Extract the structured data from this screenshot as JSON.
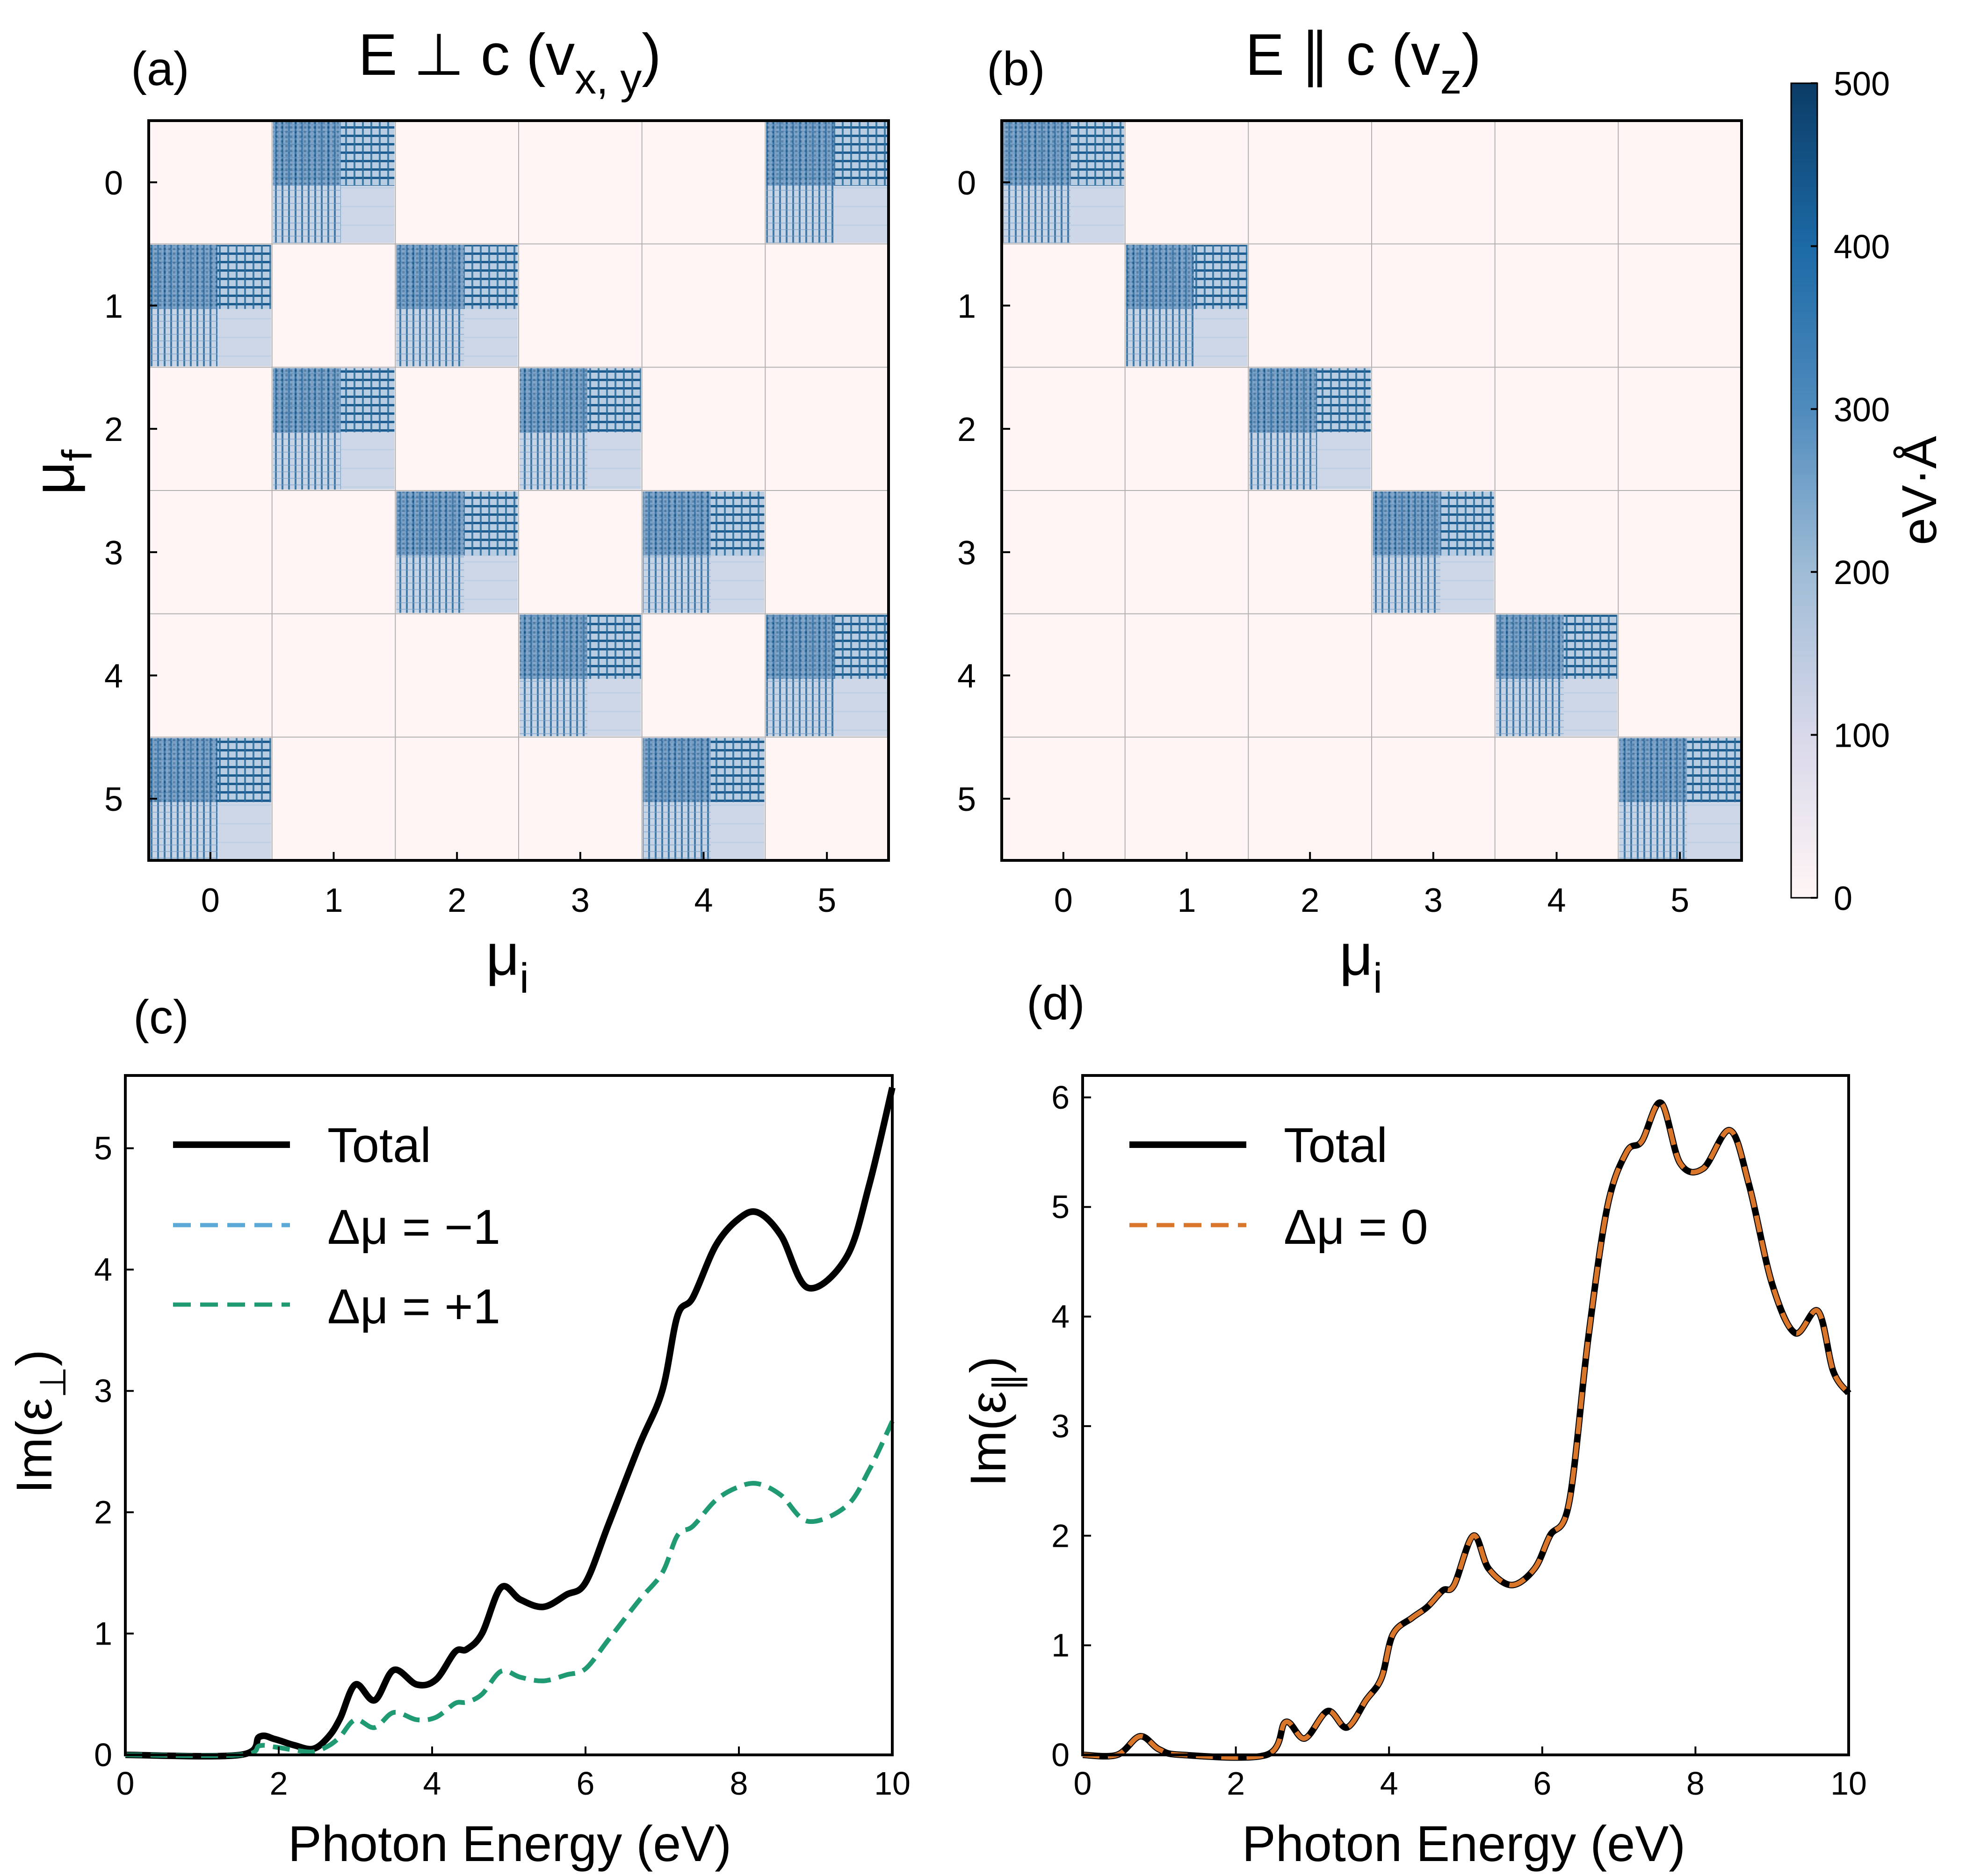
{
  "figure": {
    "panel_a_label": "(a)",
    "panel_b_label": "(b)",
    "panel_c_label": "(c)",
    "panel_d_label": "(d)"
  },
  "colorbar": {
    "label": "eV·Å",
    "ticks": [
      "0",
      "100",
      "200",
      "300",
      "400",
      "500"
    ],
    "range": [
      0,
      500
    ],
    "colors": [
      "#fff5f5",
      "#d8d8ea",
      "#9fbcd6",
      "#4f8bbd",
      "#1c6aa6",
      "#0b3c66"
    ]
  },
  "chart_data": [
    {
      "type": "heatmap",
      "panel": "a",
      "title_main": "E ⊥ c (v",
      "title_sub": "x, y",
      "title_end": ")",
      "xlabel": "μ",
      "xlabel_sub": "i",
      "ylabel": "μ",
      "ylabel_sub": "f",
      "x_ticks": [
        "0",
        "1",
        "2",
        "3",
        "4",
        "5"
      ],
      "y_ticks": [
        "0",
        "1",
        "2",
        "3",
        "4",
        "5"
      ],
      "active_blocks": [
        [
          0,
          1
        ],
        [
          0,
          5
        ],
        [
          1,
          0
        ],
        [
          1,
          2
        ],
        [
          2,
          1
        ],
        [
          2,
          3
        ],
        [
          3,
          2
        ],
        [
          3,
          4
        ],
        [
          4,
          3
        ],
        [
          4,
          5
        ],
        [
          5,
          0
        ],
        [
          5,
          4
        ]
      ],
      "block_value_range_eVA": [
        0,
        500
      ]
    },
    {
      "type": "heatmap",
      "panel": "b",
      "title_main": "E ∥ c (v",
      "title_sub": "z",
      "title_end": ")",
      "xlabel": "μ",
      "xlabel_sub": "i",
      "x_ticks": [
        "0",
        "1",
        "2",
        "3",
        "4",
        "5"
      ],
      "y_ticks": [
        "0",
        "1",
        "2",
        "3",
        "4",
        "5"
      ],
      "active_blocks": [
        [
          0,
          0
        ],
        [
          1,
          1
        ],
        [
          2,
          2
        ],
        [
          3,
          3
        ],
        [
          4,
          4
        ],
        [
          5,
          5
        ]
      ],
      "block_value_range_eVA": [
        0,
        500
      ]
    },
    {
      "type": "line",
      "panel": "c",
      "xlabel": "Photon Energy (eV)",
      "ylabel": "Im(ε",
      "ylabel_sub": "⊥",
      "ylabel_end": ")",
      "xlim": [
        0,
        10
      ],
      "ylim": [
        0,
        5.6
      ],
      "x_ticks": [
        "0",
        "2",
        "4",
        "6",
        "8",
        "10"
      ],
      "y_ticks": [
        "0",
        "1",
        "2",
        "3",
        "4",
        "5"
      ],
      "series": [
        {
          "name": "Total",
          "legend": "Total",
          "color": "#000000",
          "dash": false,
          "x": [
            0,
            1.5,
            1.75,
            1.95,
            2.2,
            2.45,
            2.65,
            2.8,
            3.0,
            3.25,
            3.5,
            3.8,
            4.05,
            4.3,
            4.45,
            4.65,
            4.9,
            5.15,
            5.45,
            5.75,
            6.0,
            6.3,
            6.7,
            7.0,
            7.2,
            7.4,
            7.7,
            8.0,
            8.25,
            8.55,
            8.9,
            9.4,
            9.7,
            10.0
          ],
          "y": [
            0,
            0,
            0.15,
            0.13,
            0.08,
            0.05,
            0.15,
            0.3,
            0.58,
            0.45,
            0.7,
            0.58,
            0.62,
            0.85,
            0.87,
            1.0,
            1.38,
            1.28,
            1.22,
            1.32,
            1.42,
            1.9,
            2.55,
            3.0,
            3.62,
            3.77,
            4.2,
            4.42,
            4.47,
            4.28,
            3.85,
            4.1,
            4.7,
            5.5
          ]
        },
        {
          "name": "Δμ = −1",
          "legend_main": "Δμ = −1",
          "color": "#5aa9d6",
          "dash": true,
          "x": [
            0,
            1.5,
            1.75,
            1.95,
            2.2,
            2.45,
            2.65,
            2.8,
            3.0,
            3.25,
            3.5,
            3.8,
            4.05,
            4.3,
            4.45,
            4.65,
            4.9,
            5.15,
            5.45,
            5.75,
            6.0,
            6.3,
            6.7,
            7.0,
            7.2,
            7.4,
            7.7,
            8.0,
            8.25,
            8.55,
            8.9,
            9.4,
            9.7,
            10.0
          ],
          "y": [
            0,
            0,
            0.075,
            0.065,
            0.04,
            0.025,
            0.075,
            0.15,
            0.29,
            0.225,
            0.35,
            0.29,
            0.31,
            0.425,
            0.435,
            0.5,
            0.69,
            0.64,
            0.61,
            0.66,
            0.71,
            0.95,
            1.275,
            1.5,
            1.81,
            1.885,
            2.1,
            2.21,
            2.235,
            2.14,
            1.925,
            2.05,
            2.35,
            2.75
          ]
        },
        {
          "name": "Δμ = +1",
          "legend_main": "Δμ = +1",
          "color": "#1f9a72",
          "dash": true,
          "x": [
            0,
            1.5,
            1.75,
            1.95,
            2.2,
            2.45,
            2.65,
            2.8,
            3.0,
            3.25,
            3.5,
            3.8,
            4.05,
            4.3,
            4.45,
            4.65,
            4.9,
            5.15,
            5.45,
            5.75,
            6.0,
            6.3,
            6.7,
            7.0,
            7.2,
            7.4,
            7.7,
            8.0,
            8.25,
            8.55,
            8.9,
            9.4,
            9.7,
            10.0
          ],
          "y": [
            0,
            0,
            0.075,
            0.065,
            0.04,
            0.025,
            0.075,
            0.15,
            0.29,
            0.225,
            0.35,
            0.29,
            0.31,
            0.425,
            0.435,
            0.5,
            0.69,
            0.64,
            0.61,
            0.66,
            0.71,
            0.95,
            1.275,
            1.5,
            1.81,
            1.885,
            2.1,
            2.21,
            2.235,
            2.14,
            1.925,
            2.05,
            2.35,
            2.75
          ]
        }
      ]
    },
    {
      "type": "line",
      "panel": "d",
      "xlabel": "Photon Energy (eV)",
      "ylabel": "Im(ε",
      "ylabel_sub": "∥",
      "ylabel_end": ")",
      "xlim": [
        0,
        10
      ],
      "ylim": [
        0,
        6.2
      ],
      "x_ticks": [
        "0",
        "2",
        "4",
        "6",
        "8",
        "10"
      ],
      "y_ticks": [
        "0",
        "1",
        "2",
        "3",
        "4",
        "5",
        "6"
      ],
      "series": [
        {
          "name": "Total",
          "legend": "Total",
          "color": "#000000",
          "dash": false,
          "x": [
            0,
            0.45,
            0.75,
            1.0,
            1.3,
            2.4,
            2.65,
            2.9,
            3.2,
            3.45,
            3.7,
            3.9,
            4.05,
            4.3,
            4.5,
            4.7,
            4.85,
            5.1,
            5.3,
            5.6,
            5.9,
            6.1,
            6.35,
            6.6,
            6.85,
            7.1,
            7.3,
            7.55,
            7.8,
            8.1,
            8.45,
            8.7,
            9.0,
            9.3,
            9.6,
            9.8,
            10.0
          ],
          "y": [
            0,
            0,
            0.17,
            0.05,
            0,
            0,
            0.3,
            0.15,
            0.4,
            0.25,
            0.5,
            0.7,
            1.1,
            1.25,
            1.35,
            1.5,
            1.55,
            2.0,
            1.7,
            1.55,
            1.7,
            2.0,
            2.3,
            3.8,
            5.0,
            5.5,
            5.6,
            5.95,
            5.4,
            5.35,
            5.7,
            5.2,
            4.3,
            3.85,
            4.05,
            3.5,
            3.3
          ]
        },
        {
          "name": "Δμ = 0",
          "legend_main": "Δμ = 0",
          "color": "#d9762a",
          "dash": true,
          "x": [
            0,
            0.45,
            0.75,
            1.0,
            1.3,
            2.4,
            2.65,
            2.9,
            3.2,
            3.45,
            3.7,
            3.9,
            4.05,
            4.3,
            4.5,
            4.7,
            4.85,
            5.1,
            5.3,
            5.6,
            5.9,
            6.1,
            6.35,
            6.6,
            6.85,
            7.1,
            7.3,
            7.55,
            7.8,
            8.1,
            8.45,
            8.7,
            9.0,
            9.3,
            9.6,
            9.8,
            10.0
          ],
          "y": [
            0,
            0,
            0.17,
            0.05,
            0,
            0,
            0.3,
            0.15,
            0.4,
            0.25,
            0.5,
            0.7,
            1.1,
            1.25,
            1.35,
            1.5,
            1.55,
            2.0,
            1.7,
            1.55,
            1.7,
            2.0,
            2.3,
            3.8,
            5.0,
            5.5,
            5.6,
            5.95,
            5.4,
            5.35,
            5.7,
            5.2,
            4.3,
            3.85,
            4.05,
            3.5,
            3.3
          ]
        }
      ]
    }
  ]
}
